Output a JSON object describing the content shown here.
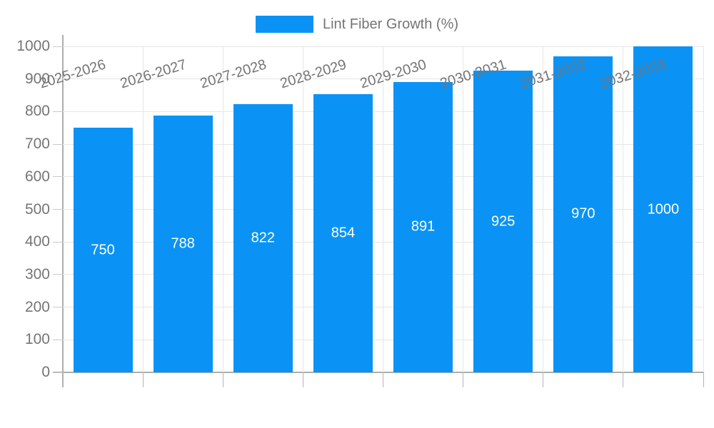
{
  "legend": {
    "items": [
      {
        "label": "Lint Fiber Growth (%)",
        "color": "#0a93f5"
      }
    ]
  },
  "chart_data": {
    "type": "bar",
    "title": "",
    "xlabel": "",
    "ylabel": "",
    "categories": [
      "2025-2026",
      "2026-2027",
      "2027-2028",
      "2028-2029",
      "2029-2030",
      "2030-2031",
      "2031-2032",
      "2032-2033"
    ],
    "series": [
      {
        "name": "Lint Fiber Growth (%)",
        "color": "#0a93f5",
        "values": [
          750,
          788,
          822,
          854,
          891,
          925,
          970,
          1000
        ]
      }
    ],
    "value_labels_shown": true,
    "ylim": [
      0,
      1000
    ],
    "yticks": [
      0,
      100,
      200,
      300,
      400,
      500,
      600,
      700,
      800,
      900,
      1000
    ],
    "grid": true,
    "x_label_rotation_deg": -17,
    "legend_position": "top-center",
    "colors": {
      "bar": "#0a93f5",
      "value_label_text": "#ffffff",
      "axis_line": "#adadad",
      "gridline": "#e6e6e6",
      "tick": "#c9c9c9",
      "axis_text": "#757575"
    }
  }
}
